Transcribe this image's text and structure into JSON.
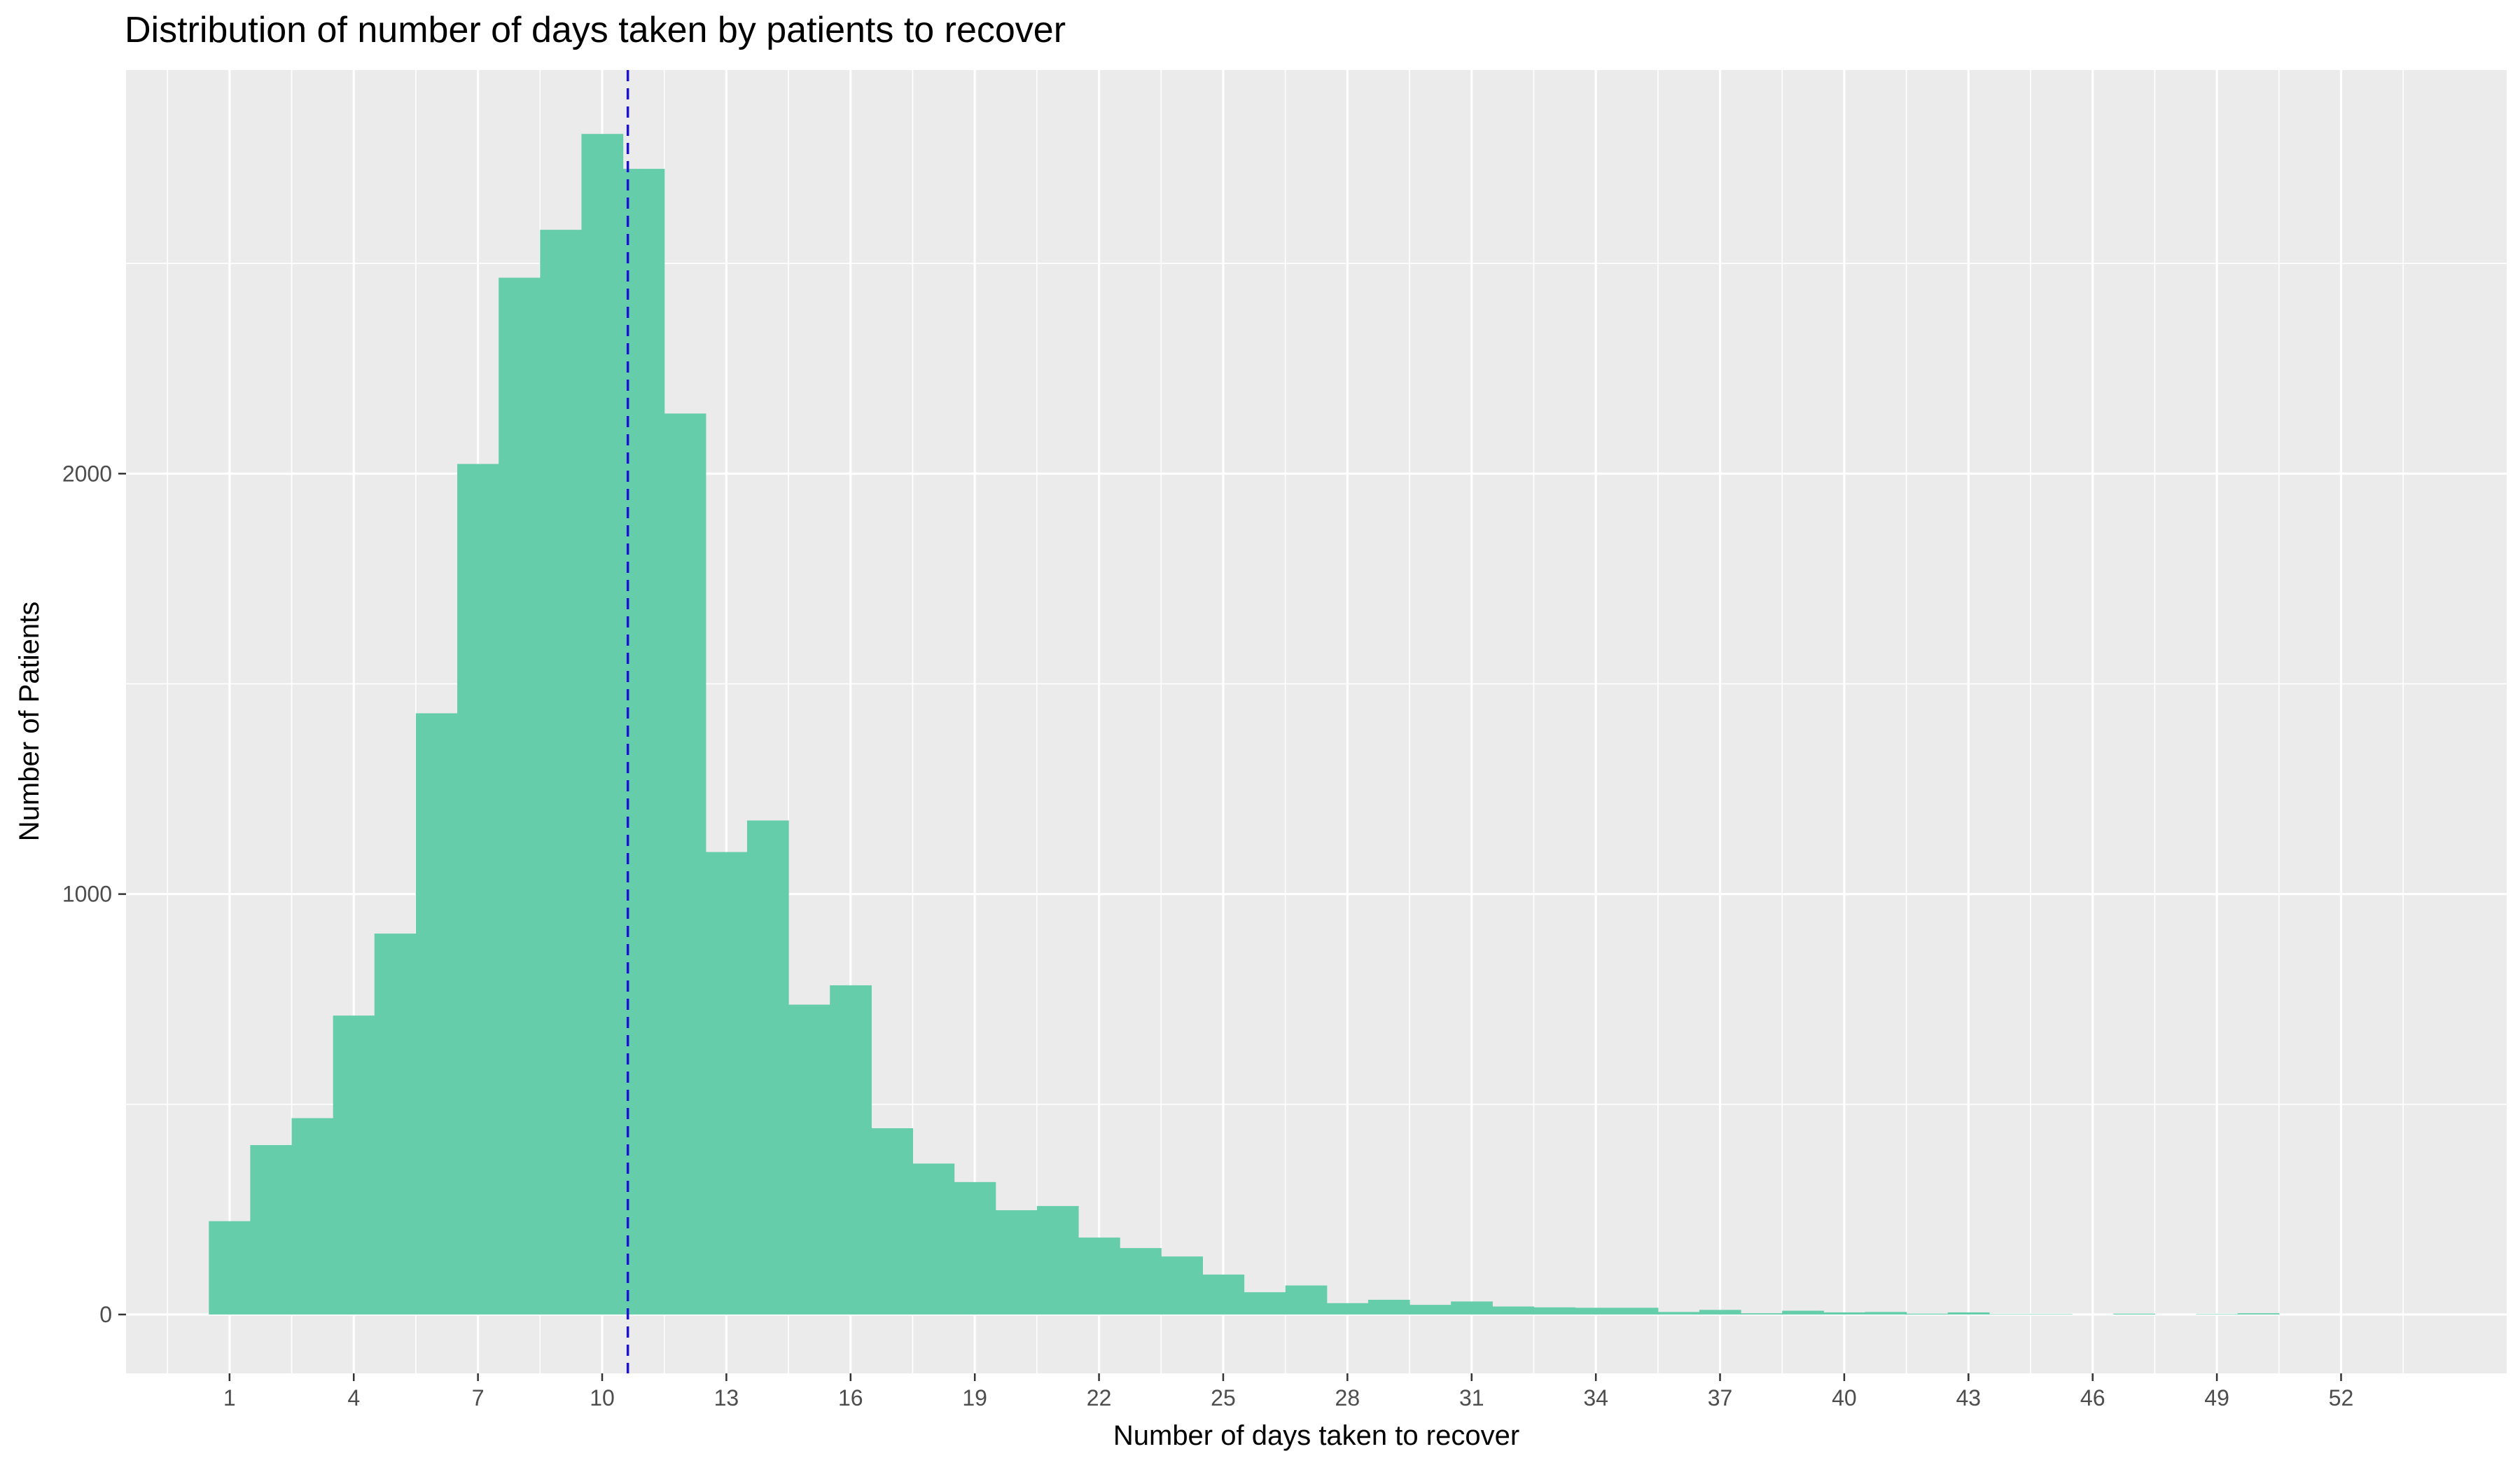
{
  "chart_data": {
    "type": "bar",
    "title": "Distribution of number of days taken by patients to recover",
    "xlabel": "Number of days taken to recover",
    "ylabel": "Number of Patients",
    "x_ticks": [
      1,
      4,
      7,
      10,
      13,
      16,
      19,
      22,
      25,
      28,
      31,
      34,
      37,
      40,
      43,
      46,
      49,
      52
    ],
    "y_ticks": [
      0,
      1000,
      2000
    ],
    "xlim": [
      -1.5,
      56
    ],
    "ylim": [
      -140,
      2960
    ],
    "grid": true,
    "categories": [
      1,
      2,
      3,
      4,
      5,
      6,
      7,
      8,
      9,
      10,
      11,
      12,
      13,
      14,
      15,
      16,
      17,
      18,
      19,
      20,
      21,
      22,
      23,
      24,
      25,
      26,
      27,
      28,
      29,
      30,
      31,
      32,
      33,
      34,
      35,
      36,
      37,
      38,
      39,
      40,
      41,
      42,
      43,
      44,
      45,
      46,
      47,
      48,
      49,
      50,
      51,
      52,
      53
    ],
    "values": [
      222,
      403,
      467,
      711,
      906,
      1430,
      2023,
      2466,
      2580,
      2808,
      2725,
      2143,
      1100,
      1175,
      737,
      783,
      443,
      359,
      315,
      248,
      258,
      183,
      158,
      138,
      95,
      53,
      69,
      27,
      35,
      23,
      31,
      19,
      17,
      16,
      16,
      6,
      11,
      3,
      9,
      5,
      6,
      2,
      5,
      1,
      1,
      0,
      2,
      0,
      1,
      3,
      0,
      0,
      0
    ],
    "mean_line": {
      "x": 10.62,
      "style": "dashed",
      "color": "#1c12d6"
    },
    "bar_color": "#66cdaa",
    "panel_background": "#ebebeb",
    "grid_color": "#ffffff"
  }
}
